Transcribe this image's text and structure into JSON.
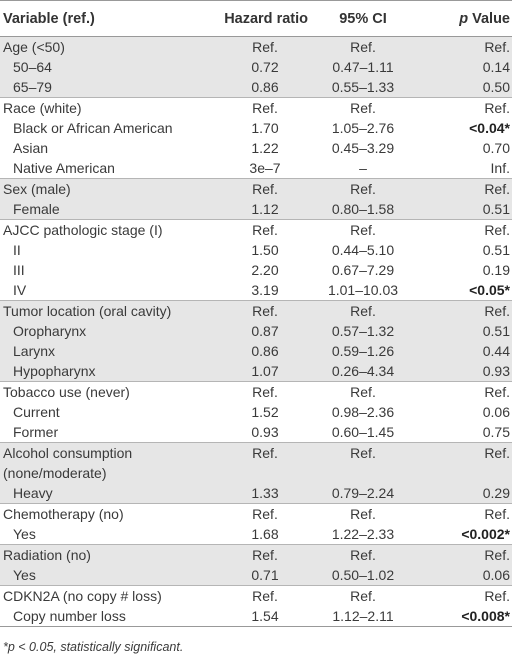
{
  "headers": {
    "variable": "Variable (ref.)",
    "hazard_ratio": "Hazard ratio",
    "ci": "95% CI",
    "p_value": "p Value"
  },
  "rows": [
    {
      "variable": "Age (<50)",
      "hr": "Ref.",
      "ci": "Ref.",
      "p": "Ref."
    },
    {
      "variable": "50–64",
      "hr": "0.72",
      "ci": "0.47–1.11",
      "p": "0.14"
    },
    {
      "variable": "65–79",
      "hr": "0.86",
      "ci": "0.55–1.33",
      "p": "0.50"
    },
    {
      "variable": "Race (white)",
      "hr": "Ref.",
      "ci": "Ref.",
      "p": "Ref."
    },
    {
      "variable": "Black or African American",
      "hr": "1.70",
      "ci": "1.05–2.76",
      "p": "<0.04*"
    },
    {
      "variable": "Asian",
      "hr": "1.22",
      "ci": "0.45–3.29",
      "p": "0.70"
    },
    {
      "variable": "Native American",
      "hr": "3e–7",
      "ci": "–",
      "p": "Inf."
    },
    {
      "variable": "Sex (male)",
      "hr": "Ref.",
      "ci": "Ref.",
      "p": "Ref."
    },
    {
      "variable": "Female",
      "hr": "1.12",
      "ci": "0.80–1.58",
      "p": "0.51"
    },
    {
      "variable": "AJCC pathologic stage (I)",
      "hr": "Ref.",
      "ci": "Ref.",
      "p": "Ref."
    },
    {
      "variable": "II",
      "hr": "1.50",
      "ci": "0.44–5.10",
      "p": "0.51"
    },
    {
      "variable": "III",
      "hr": "2.20",
      "ci": "0.67–7.29",
      "p": "0.19"
    },
    {
      "variable": "IV",
      "hr": "3.19",
      "ci": "1.01–10.03",
      "p": "<0.05*"
    },
    {
      "variable": "Tumor location (oral cavity)",
      "hr": "Ref.",
      "ci": "Ref.",
      "p": "Ref."
    },
    {
      "variable": "Oropharynx",
      "hr": "0.87",
      "ci": "0.57–1.32",
      "p": "0.51"
    },
    {
      "variable": "Larynx",
      "hr": "0.86",
      "ci": "0.59–1.26",
      "p": "0.44"
    },
    {
      "variable": "Hypopharynx",
      "hr": "1.07",
      "ci": "0.26–4.34",
      "p": "0.93"
    },
    {
      "variable": "Tobacco use (never)",
      "hr": "Ref.",
      "ci": "Ref.",
      "p": "Ref."
    },
    {
      "variable": "Current",
      "hr": "1.52",
      "ci": "0.98–2.36",
      "p": "0.06"
    },
    {
      "variable": "Former",
      "hr": "0.93",
      "ci": "0.60–1.45",
      "p": "0.75"
    },
    {
      "variable": "Alcohol consumption",
      "hr": "Ref.",
      "ci": "Ref.",
      "p": "Ref."
    },
    {
      "variable": "(none/moderate)",
      "hr": "",
      "ci": "",
      "p": ""
    },
    {
      "variable": "Heavy",
      "hr": "1.33",
      "ci": "0.79–2.24",
      "p": "0.29"
    },
    {
      "variable": "Chemotherapy (no)",
      "hr": "Ref.",
      "ci": "Ref.",
      "p": "Ref."
    },
    {
      "variable": "Yes",
      "hr": "1.68",
      "ci": "1.22–2.33",
      "p": "<0.002*"
    },
    {
      "variable": "Radiation (no)",
      "hr": "Ref.",
      "ci": "Ref.",
      "p": "Ref."
    },
    {
      "variable": "Yes",
      "hr": "0.71",
      "ci": "0.50–1.02",
      "p": "0.06"
    },
    {
      "variable": "CDKN2A (no copy # loss)",
      "hr": "Ref.",
      "ci": "Ref.",
      "p": "Ref."
    },
    {
      "variable": "Copy number loss",
      "hr": "1.54",
      "ci": "1.12–2.11",
      "p": "<0.008*"
    }
  ],
  "footnote": "*p < 0.05, statistically significant."
}
